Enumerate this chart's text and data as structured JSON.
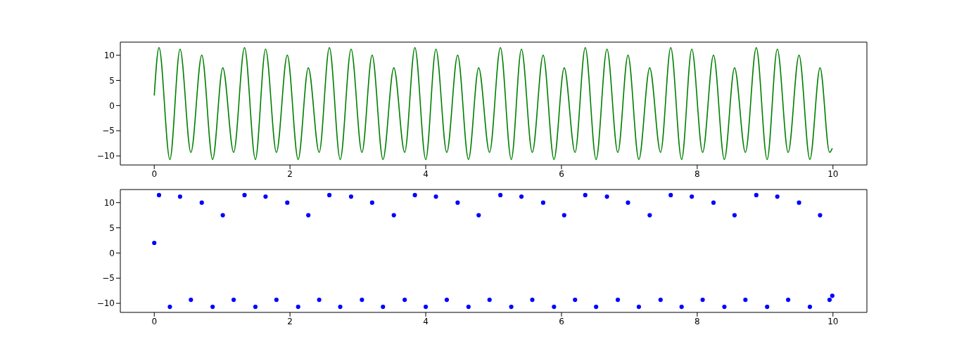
{
  "chart_data": [
    {
      "type": "line",
      "color": "#008000",
      "xlim": [
        -0.5,
        10.5
      ],
      "ylim": [
        -11.8,
        12.6
      ],
      "xticks": [
        0,
        2,
        4,
        6,
        8,
        10
      ],
      "yticks": [
        -10,
        -5,
        0,
        5,
        10
      ],
      "x": [
        0,
        0.07,
        0.23,
        0.38,
        0.54,
        0.7,
        0.86,
        1.01,
        1.17,
        1.33,
        1.49,
        1.64,
        1.8,
        1.96,
        2.12,
        2.27,
        2.43,
        2.58,
        2.74,
        2.9,
        3.06,
        3.21,
        3.37,
        3.53,
        3.69,
        3.84,
        4.0,
        4.15,
        4.31,
        4.47,
        4.63,
        4.78,
        4.94,
        5.1,
        5.26,
        5.41,
        5.57,
        5.73,
        5.89,
        6.04,
        6.2,
        6.35,
        6.51,
        6.67,
        6.83,
        6.98,
        7.14,
        7.3,
        7.46,
        7.61,
        7.77,
        7.92,
        8.08,
        8.24,
        8.4,
        8.55,
        8.71,
        8.87,
        9.03,
        9.18,
        9.34,
        9.5,
        9.66,
        9.81,
        9.95,
        9.99
      ],
      "values": [
        2,
        11.5,
        -10.7,
        11.2,
        -9.3,
        10,
        -10.7,
        7.5,
        -9.3,
        11.5,
        -10.7,
        11.2,
        -9.3,
        10,
        -10.7,
        7.5,
        -9.3,
        11.5,
        -10.7,
        11.2,
        -9.3,
        10,
        -10.7,
        7.5,
        -9.3,
        11.5,
        -10.7,
        11.2,
        -9.3,
        10,
        -10.7,
        7.5,
        -9.3,
        11.5,
        -10.7,
        11.2,
        -9.3,
        10,
        -10.7,
        7.5,
        -9.3,
        11.5,
        -10.7,
        11.2,
        -9.3,
        10,
        -10.7,
        7.5,
        -9.3,
        11.5,
        -10.7,
        11.2,
        -9.3,
        10,
        -10.7,
        7.5,
        -9.3,
        11.5,
        -10.7,
        11.2,
        -9.3,
        10,
        -10.7,
        7.5,
        -9.3,
        -8.5
      ]
    },
    {
      "type": "scatter",
      "color": "#0000ff",
      "marker": "circle",
      "xlim": [
        -0.5,
        10.5
      ],
      "ylim": [
        -11.8,
        12.6
      ],
      "xticks": [
        0,
        2,
        4,
        6,
        8,
        10
      ],
      "yticks": [
        -10,
        -5,
        0,
        5,
        10
      ],
      "x": [
        0,
        0.07,
        0.23,
        0.38,
        0.54,
        0.7,
        0.86,
        1.01,
        1.17,
        1.33,
        1.49,
        1.64,
        1.8,
        1.96,
        2.12,
        2.27,
        2.43,
        2.58,
        2.74,
        2.9,
        3.06,
        3.21,
        3.37,
        3.53,
        3.69,
        3.84,
        4.0,
        4.15,
        4.31,
        4.47,
        4.63,
        4.78,
        4.94,
        5.1,
        5.26,
        5.41,
        5.57,
        5.73,
        5.89,
        6.04,
        6.2,
        6.35,
        6.51,
        6.67,
        6.83,
        6.98,
        7.14,
        7.3,
        7.46,
        7.61,
        7.77,
        7.92,
        8.08,
        8.24,
        8.4,
        8.55,
        8.71,
        8.87,
        9.03,
        9.18,
        9.34,
        9.5,
        9.66,
        9.81,
        9.95,
        9.99
      ],
      "values": [
        2,
        11.5,
        -10.7,
        11.2,
        -9.3,
        10,
        -10.7,
        7.5,
        -9.3,
        11.5,
        -10.7,
        11.2,
        -9.3,
        10,
        -10.7,
        7.5,
        -9.3,
        11.5,
        -10.7,
        11.2,
        -9.3,
        10,
        -10.7,
        7.5,
        -9.3,
        11.5,
        -10.7,
        11.2,
        -9.3,
        10,
        -10.7,
        7.5,
        -9.3,
        11.5,
        -10.7,
        11.2,
        -9.3,
        10,
        -10.7,
        7.5,
        -9.3,
        11.5,
        -10.7,
        11.2,
        -9.3,
        10,
        -10.7,
        7.5,
        -9.3,
        11.5,
        -10.7,
        11.2,
        -9.3,
        10,
        -10.7,
        7.5,
        -9.3,
        11.5,
        -10.7,
        11.2,
        -9.3,
        10,
        -10.7,
        7.5,
        -9.3,
        -8.5
      ]
    }
  ]
}
